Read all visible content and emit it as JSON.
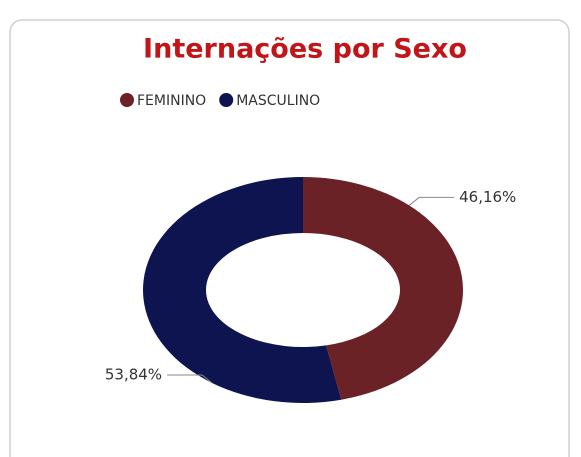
{
  "chart_data": {
    "type": "donut",
    "title": "Internações por Sexo",
    "categories": [
      "FEMININO",
      "MASCULINO"
    ],
    "values": [
      46.16,
      53.84
    ],
    "value_labels": [
      "46,16%",
      "53,84%"
    ],
    "colors": [
      "#6b2226",
      "#0d1450"
    ],
    "legend": "top"
  }
}
